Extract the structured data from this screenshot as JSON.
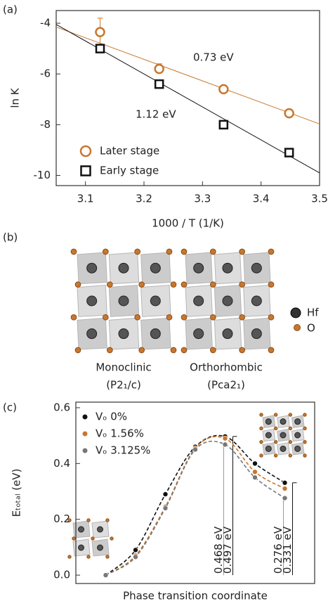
{
  "panel_labels": [
    "(a)",
    "(b)",
    "(c)"
  ],
  "chart_data": [
    {
      "type": "scatter",
      "xlabel": "1000 / T (1/K)",
      "ylabel": "ln K",
      "xlim": [
        3.05,
        3.5
      ],
      "ylim": [
        -10.4,
        -3.5
      ],
      "xticks": [
        3.1,
        3.2,
        3.3,
        3.4,
        3.5
      ],
      "yticks": [
        -10,
        -8,
        -6,
        -4
      ],
      "series": [
        {
          "name": "Later stage",
          "color": "#c8772e",
          "marker": "circle",
          "x": [
            3.125,
            3.226,
            3.336,
            3.448
          ],
          "values": [
            -4.35,
            -5.8,
            -6.6,
            -7.55
          ],
          "errors": [
            0.55,
            0.2,
            null,
            null
          ]
        },
        {
          "name": "Early stage",
          "color": "#111111",
          "marker": "square",
          "x": [
            3.125,
            3.226,
            3.336,
            3.448
          ],
          "values": [
            -5.0,
            -6.4,
            -8.0,
            -9.1
          ]
        }
      ],
      "fits": [
        {
          "color": "#c8772e",
          "x": [
            3.05,
            3.5
          ],
          "values": [
            -4.15,
            -7.97
          ]
        },
        {
          "color": "#111111",
          "x": [
            3.05,
            3.5
          ],
          "values": [
            -4.05,
            -9.9
          ]
        }
      ],
      "annotations": [
        {
          "text": "0.73 eV",
          "color": "#c8772e"
        },
        {
          "text": "1.12 eV",
          "color": "#111111"
        }
      ],
      "legend": "lower left"
    },
    {
      "type": "line",
      "xlabel": "Phase transition coordinate",
      "ylabel": "Eₜₒₜₐₗ (eV)",
      "xlim": [
        -1,
        7
      ],
      "ylim": [
        -0.03,
        0.62
      ],
      "yticks": [
        {
          "value": 0,
          "label": "0.0"
        },
        0.2,
        0.4,
        0.6
      ],
      "x": [
        0,
        1,
        2,
        3,
        4,
        5,
        6
      ],
      "series": [
        {
          "name": "Vₒ 0%",
          "color": "#111111",
          "values": [
            0,
            0.09,
            0.29,
            0.46,
            0.497,
            0.4,
            0.331
          ]
        },
        {
          "name": "Vₒ 1.56%",
          "color": "#c8772e",
          "values": [
            0,
            0.07,
            0.245,
            0.455,
            0.49,
            0.37,
            0.31
          ]
        },
        {
          "name": "Vₒ 3.125%",
          "color": "#777777",
          "values": [
            0,
            0.065,
            0.24,
            0.45,
            0.468,
            0.35,
            0.276
          ]
        }
      ],
      "energy_labels": [
        {
          "text": "0.468 eV",
          "value": 0.468,
          "color": "#999999"
        },
        {
          "text": "0.497 eV",
          "value": 0.497,
          "color": "#111111"
        },
        {
          "text": "0.276 eV",
          "value": 0.276,
          "color": "#999999"
        },
        {
          "text": "0.331 eV",
          "value": 0.331,
          "color": "#111111"
        }
      ],
      "legend": "upper left"
    }
  ],
  "structures": {
    "phases": [
      {
        "name": "Monoclinic",
        "group": "(P2₁/c)"
      },
      {
        "name": "Orthorhombic",
        "group": "(Pca2₁)"
      }
    ],
    "atoms": [
      {
        "label": "Hf"
      },
      {
        "label": "O"
      }
    ]
  }
}
